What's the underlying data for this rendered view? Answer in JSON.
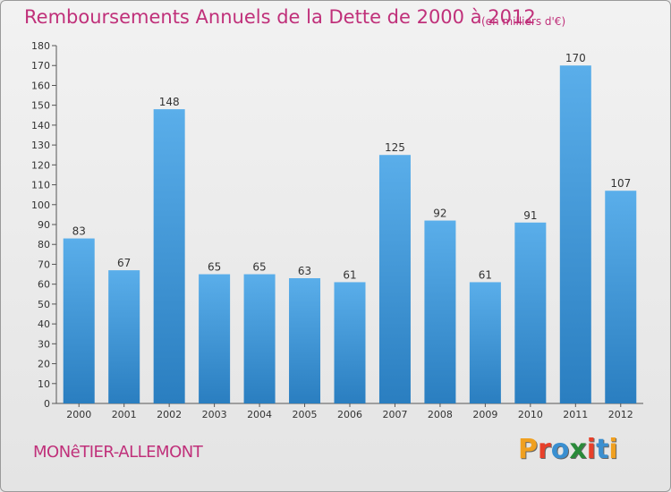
{
  "header": {
    "title": "Remboursements Annuels de la Dette de 2000 à 2012",
    "unit": "(en milliers d'€)"
  },
  "footer": {
    "commune": "MONêTIER-ALLEMONT",
    "logo": "Proxiti",
    "logo_colors": [
      "#f0a020",
      "#e8402a",
      "#3a8fd0",
      "#2a8a3a",
      "#e8402a",
      "#3a8fd0",
      "#f0a020"
    ]
  },
  "colors": {
    "title": "#c0307a",
    "bar_top": "#5aaeea",
    "bar_bottom": "#2a7ec0"
  },
  "chart_data": {
    "type": "bar",
    "title": "Remboursements Annuels de la Dette de 2000 à 2012",
    "categories": [
      "2000",
      "2001",
      "2002",
      "2003",
      "2004",
      "2005",
      "2006",
      "2007",
      "2008",
      "2009",
      "2010",
      "2011",
      "2012"
    ],
    "values": [
      83,
      67,
      148,
      65,
      65,
      63,
      61,
      125,
      92,
      61,
      91,
      170,
      107
    ],
    "ylim": [
      0,
      180
    ],
    "ytick_step": 10,
    "grid": false,
    "legend": "none"
  }
}
